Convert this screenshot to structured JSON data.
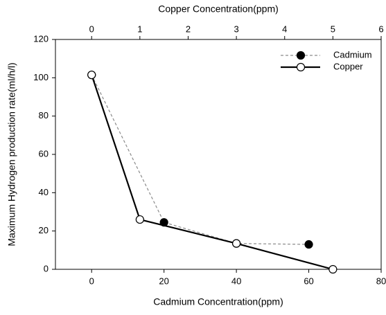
{
  "chart_data": {
    "type": "line",
    "xlabel": "Cadmium Concentration(ppm)",
    "x2label": "Copper Concentration(ppm)",
    "ylabel": "Maximum Hydrogen production rate(ml/h/l)",
    "xlim": [
      -10,
      80
    ],
    "xticks": [
      0,
      20,
      40,
      60,
      80
    ],
    "x2lim": [
      -0.75,
      6
    ],
    "x2ticks": [
      0,
      1,
      2,
      3,
      4,
      5,
      6
    ],
    "ylim": [
      0,
      120
    ],
    "yticks": [
      0,
      20,
      40,
      60,
      80,
      100,
      120
    ],
    "legend": "upper right",
    "series": [
      {
        "name": "Cadmium",
        "axis": "x",
        "color": "#8a8a8a",
        "linestyle": "dashed",
        "marker_color": "#000000",
        "x": [
          0,
          20,
          40,
          60
        ],
        "values": [
          101.5,
          24.5,
          13.5,
          13
        ]
      },
      {
        "name": "Copper",
        "axis": "x2",
        "color": "#000000",
        "linestyle": "solid",
        "marker_color": "#ffffff",
        "x": [
          0,
          1,
          3,
          5
        ],
        "values": [
          101.5,
          26,
          13.5,
          0
        ]
      }
    ]
  }
}
